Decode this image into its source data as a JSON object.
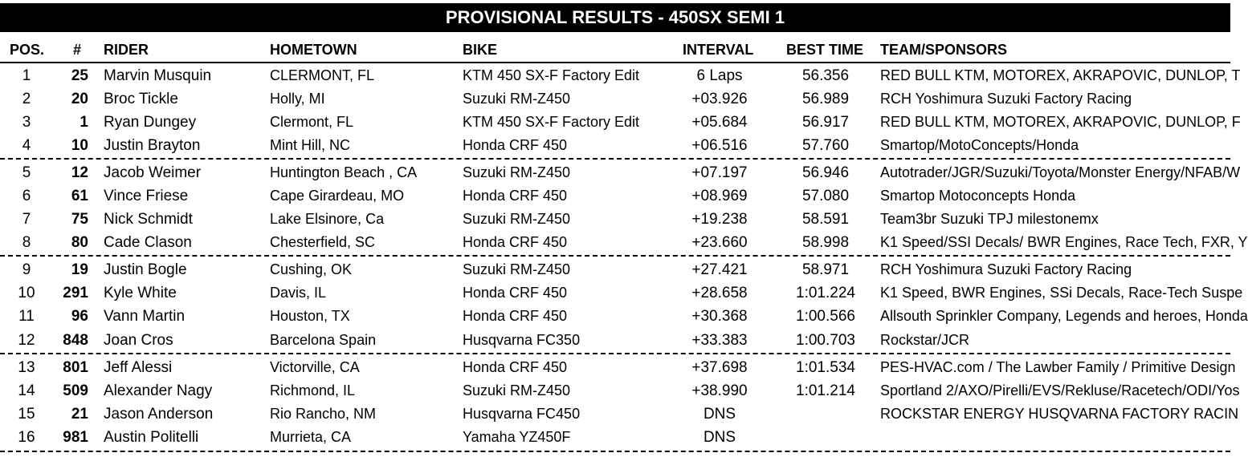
{
  "title": "PROVISIONAL RESULTS - 450SX SEMI 1",
  "headers": {
    "pos": "POS.",
    "num": "#",
    "rider": "RIDER",
    "hometown": "HOMETOWN",
    "bike": "BIKE",
    "interval": "INTERVAL",
    "best_time": "BEST TIME",
    "team": "TEAM/SPONSORS"
  },
  "rows": [
    {
      "pos": "1",
      "num": "25",
      "rider": "Marvin Musquin",
      "hometown": "CLERMONT, FL",
      "bike": "KTM 450 SX-F Factory Edit",
      "interval": "6 Laps",
      "best_time": "56.356",
      "team": "RED BULL KTM, MOTOREX, AKRAPOVIC, DUNLOP, T"
    },
    {
      "pos": "2",
      "num": "20",
      "rider": "Broc Tickle",
      "hometown": "Holly, MI",
      "bike": "Suzuki RM-Z450",
      "interval": "+03.926",
      "best_time": "56.989",
      "team": "RCH Yoshimura Suzuki Factory Racing"
    },
    {
      "pos": "3",
      "num": "1",
      "rider": "Ryan Dungey",
      "hometown": "Clermont, FL",
      "bike": "KTM 450 SX-F Factory Edit",
      "interval": "+05.684",
      "best_time": "56.917",
      "team": "RED BULL KTM, MOTOREX, AKRAPOVIC, DUNLOP, F"
    },
    {
      "pos": "4",
      "num": "10",
      "rider": "Justin Brayton",
      "hometown": "Mint Hill, NC",
      "bike": "Honda CRF 450",
      "interval": "+06.516",
      "best_time": "57.760",
      "team": "Smartop/MotoConcepts/Honda"
    },
    {
      "pos": "5",
      "num": "12",
      "rider": "Jacob Weimer",
      "hometown": "Huntington Beach , CA",
      "bike": "Suzuki RM-Z450",
      "interval": "+07.197",
      "best_time": "56.946",
      "team": "Autotrader/JGR/Suzuki/Toyota/Monster Energy/NFAB/W"
    },
    {
      "pos": "6",
      "num": "61",
      "rider": "Vince Friese",
      "hometown": "Cape Girardeau, MO",
      "bike": "Honda CRF 450",
      "interval": "+08.969",
      "best_time": "57.080",
      "team": "Smartop Motoconcepts Honda"
    },
    {
      "pos": "7",
      "num": "75",
      "rider": "Nick Schmidt",
      "hometown": "Lake Elsinore, Ca",
      "bike": "Suzuki RM-Z450",
      "interval": "+19.238",
      "best_time": "58.591",
      "team": "Team3br Suzuki TPJ milestonemx"
    },
    {
      "pos": "8",
      "num": "80",
      "rider": "Cade Clason",
      "hometown": "Chesterfield, SC",
      "bike": "Honda CRF 450",
      "interval": "+23.660",
      "best_time": "58.998",
      "team": "K1 Speed/SSI Decals/ BWR Engines, Race Tech, FXR, Y"
    },
    {
      "pos": "9",
      "num": "19",
      "rider": "Justin Bogle",
      "hometown": "Cushing, OK",
      "bike": "Suzuki RM-Z450",
      "interval": "+27.421",
      "best_time": "58.971",
      "team": "RCH Yoshimura Suzuki Factory Racing"
    },
    {
      "pos": "10",
      "num": "291",
      "rider": "Kyle White",
      "hometown": "Davis, IL",
      "bike": "Honda CRF 450",
      "interval": "+28.658",
      "best_time": "1:01.224",
      "team": "K1 Speed, BWR Engines, SSi Decals, Race-Tech Suspe"
    },
    {
      "pos": "11",
      "num": "96",
      "rider": "Vann Martin",
      "hometown": "Houston, TX",
      "bike": "Honda CRF 450",
      "interval": "+30.368",
      "best_time": "1:00.566",
      "team": "Allsouth Sprinkler Company, Legends and heroes, Honda"
    },
    {
      "pos": "12",
      "num": "848",
      "rider": "Joan Cros",
      "hometown": "Barcelona Spain",
      "bike": "Husqvarna FC350",
      "interval": "+33.383",
      "best_time": "1:00.703",
      "team": "Rockstar/JCR"
    },
    {
      "pos": "13",
      "num": "801",
      "rider": "Jeff Alessi",
      "hometown": "Victorville, CA",
      "bike": "Honda CRF 450",
      "interval": "+37.698",
      "best_time": "1:01.534",
      "team": "PES-HVAC.com / The Lawber Family / Primitive Design"
    },
    {
      "pos": "14",
      "num": "509",
      "rider": "Alexander Nagy",
      "hometown": "Richmond, IL",
      "bike": "Suzuki RM-Z450",
      "interval": "+38.990",
      "best_time": "1:01.214",
      "team": "Sportland 2/AXO/Pirelli/EVS/Rekluse/Racetech/ODI/Yos"
    },
    {
      "pos": "15",
      "num": "21",
      "rider": "Jason Anderson",
      "hometown": "Rio Rancho, NM",
      "bike": "Husqvarna FC450",
      "interval": "DNS",
      "best_time": "",
      "team": "ROCKSTAR ENERGY HUSQVARNA FACTORY RACIN"
    },
    {
      "pos": "16",
      "num": "981",
      "rider": "Austin Politelli",
      "hometown": "Murrieta, CA",
      "bike": "Yamaha YZ450F",
      "interval": "DNS",
      "best_time": "",
      "team": ""
    }
  ]
}
